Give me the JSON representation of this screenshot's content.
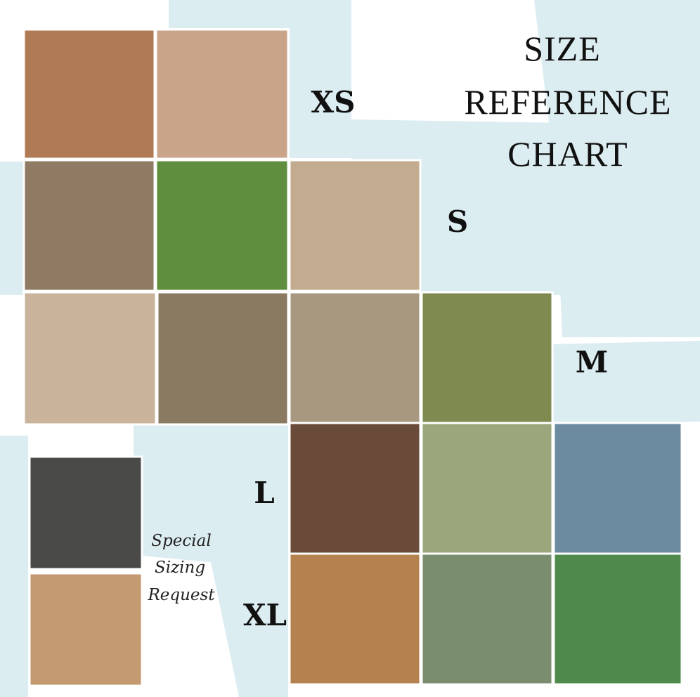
{
  "title": {
    "lines": [
      "SIZE",
      "REFERENCE",
      "CHART"
    ]
  },
  "sizes": [
    "XS",
    "S",
    "M",
    "L",
    "XL"
  ],
  "special_request": {
    "lines": [
      "Special",
      "Sizing",
      "Request"
    ]
  }
}
